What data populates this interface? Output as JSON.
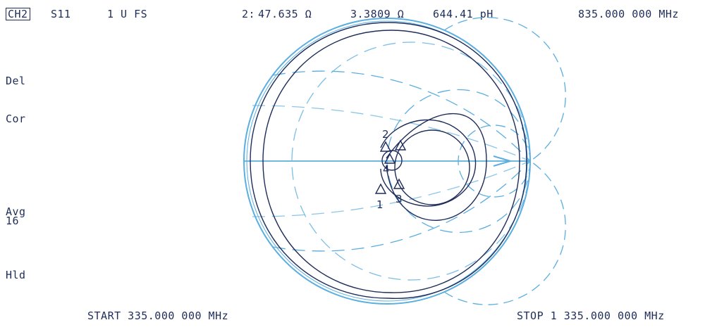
{
  "header": {
    "channel": "CH2",
    "parameter": "S11",
    "format": "1 U FS",
    "marker_readout": {
      "marker": "2:",
      "resistance": "47.635 Ω",
      "reactance": "3.3809 Ω",
      "equivalent": "644.41 pH"
    },
    "marker_frequency": "835.000 000 MHz"
  },
  "left_annotations": {
    "del": "Del",
    "cor": "Cor",
    "avg": "Avg",
    "avg_factor": "16",
    "hld": "Hld"
  },
  "footer": {
    "start": "START 335.000 000 MHz",
    "stop": "STOP 1 335.000 000 MHz"
  },
  "markers": [
    {
      "label": "1"
    },
    {
      "label": "2"
    },
    {
      "label": "3"
    },
    {
      "label": "4"
    }
  ],
  "colors": {
    "trace": "#1f2d5a",
    "grid": "#5aaee0",
    "background": "#ffffff"
  }
}
